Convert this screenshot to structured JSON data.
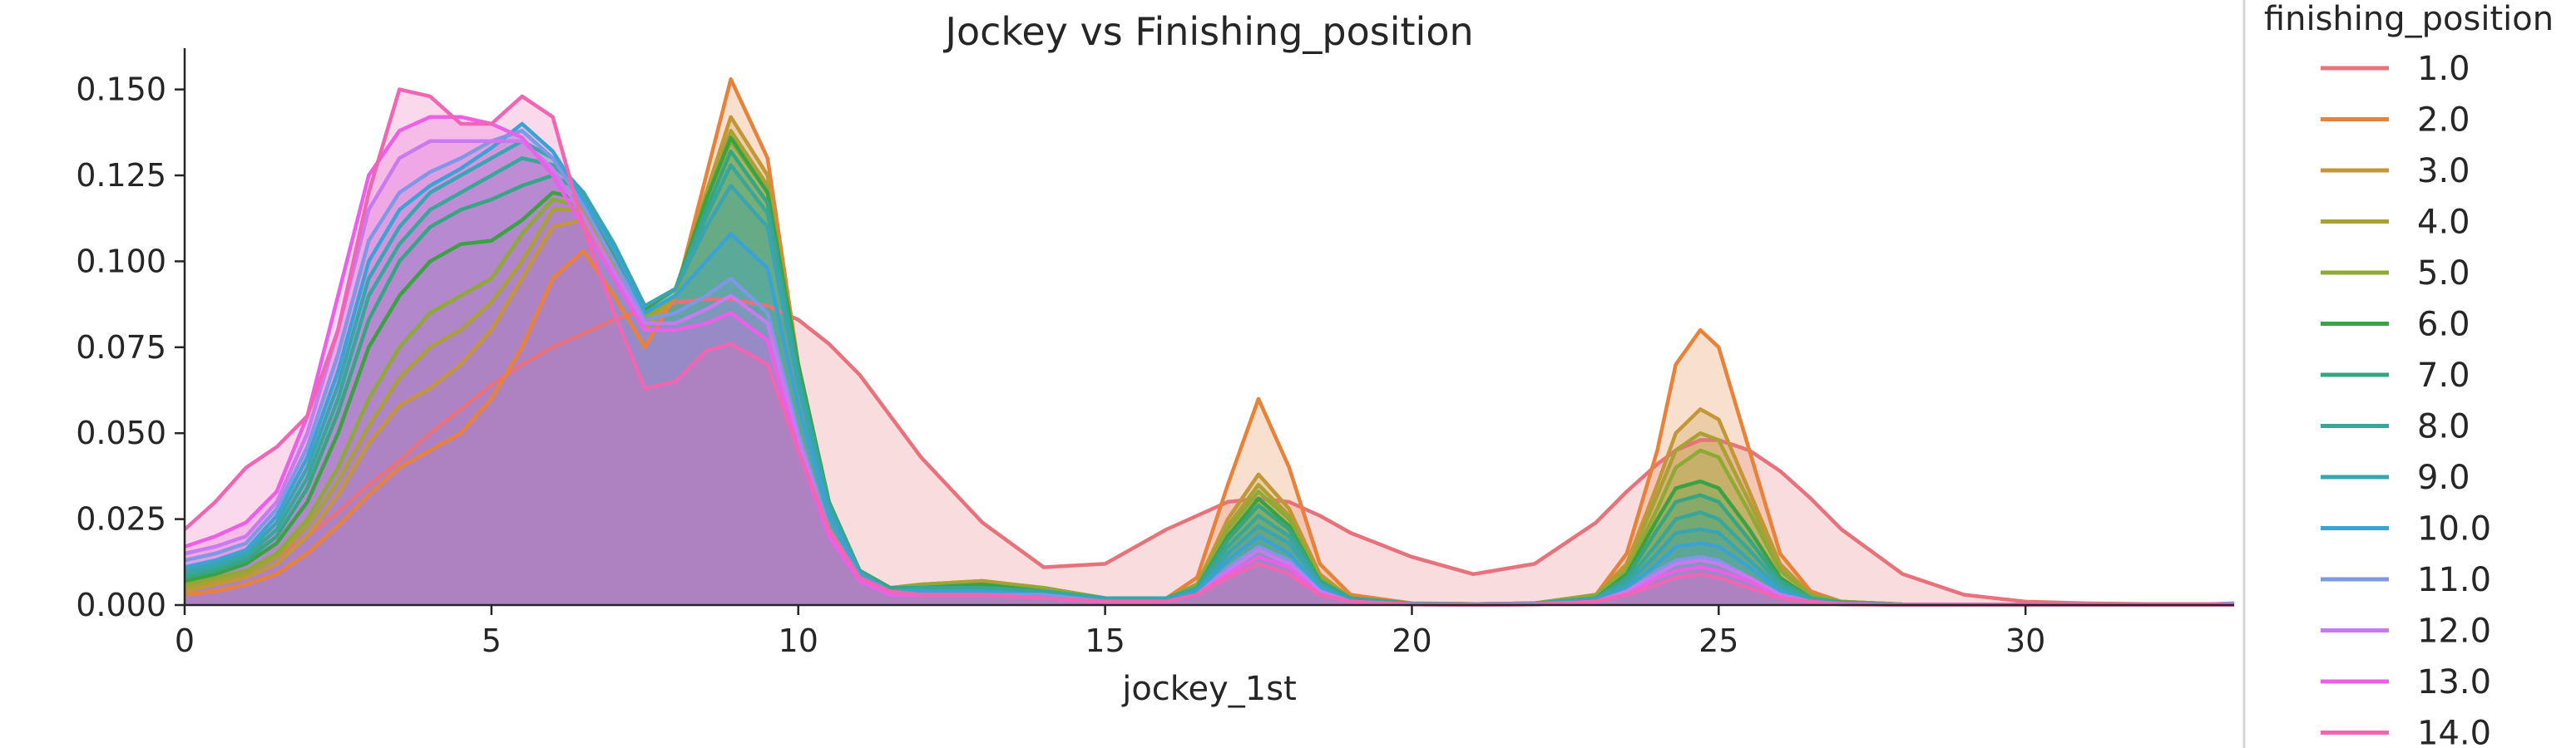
{
  "chart_data": {
    "type": "area",
    "subtype": "kde",
    "title": "Jockey vs Finishing_position",
    "xlabel": "jockey_1st",
    "ylabel": "",
    "xlim": [
      0,
      33.4
    ],
    "ylim": [
      0,
      0.162
    ],
    "x_ticks": [
      0,
      5,
      10,
      15,
      20,
      25,
      30
    ],
    "x_tick_labels": [
      "0",
      "5",
      "10",
      "15",
      "20",
      "25",
      "30"
    ],
    "y_ticks": [
      0,
      0.025,
      0.05,
      0.075,
      0.1,
      0.125,
      0.15
    ],
    "y_tick_labels": [
      "0.000",
      "0.025",
      "0.050",
      "0.075",
      "0.100",
      "0.125",
      "0.150"
    ],
    "grid": false,
    "legend": {
      "title": "finishing_position",
      "placement": "right-outside"
    },
    "x": [
      0,
      0.5,
      1,
      1.5,
      2,
      2.5,
      3,
      3.5,
      4,
      4.5,
      5,
      5.5,
      6,
      6.5,
      7,
      7.5,
      8,
      8.5,
      8.9,
      9.5,
      10,
      10.5,
      11,
      11.5,
      12,
      13,
      14,
      15,
      16,
      16.5,
      17,
      17.5,
      18,
      18.5,
      19,
      20,
      21,
      22,
      23,
      23.5,
      24,
      24.3,
      24.7,
      25,
      25.5,
      26,
      26.5,
      27,
      28,
      29,
      30,
      31,
      32,
      33,
      33.4
    ],
    "series": [
      {
        "name": "1.0",
        "color": "#e8727c",
        "values": [
          0.005,
          0.007,
          0.01,
          0.014,
          0.02,
          0.027,
          0.035,
          0.042,
          0.05,
          0.057,
          0.064,
          0.07,
          0.075,
          0.079,
          0.083,
          0.086,
          0.088,
          0.089,
          0.089,
          0.087,
          0.083,
          0.076,
          0.067,
          0.055,
          0.043,
          0.024,
          0.011,
          0.012,
          0.022,
          0.026,
          0.03,
          0.031,
          0.03,
          0.026,
          0.021,
          0.014,
          0.009,
          0.012,
          0.024,
          0.033,
          0.041,
          0.045,
          0.048,
          0.048,
          0.045,
          0.039,
          0.031,
          0.022,
          0.009,
          0.003,
          0.001,
          0.0005,
          0.0003,
          0.0003,
          0.0005
        ]
      },
      {
        "name": "2.0",
        "color": "#e8823a",
        "values": [
          0.003,
          0.004,
          0.006,
          0.009,
          0.015,
          0.023,
          0.032,
          0.04,
          0.045,
          0.05,
          0.06,
          0.075,
          0.095,
          0.103,
          0.09,
          0.075,
          0.09,
          0.125,
          0.153,
          0.13,
          0.07,
          0.03,
          0.01,
          0.005,
          0.006,
          0.007,
          0.005,
          0.002,
          0.002,
          0.008,
          0.035,
          0.06,
          0.04,
          0.012,
          0.003,
          0.0005,
          0.0003,
          0.0005,
          0.003,
          0.015,
          0.045,
          0.07,
          0.08,
          0.075,
          0.045,
          0.015,
          0.004,
          0.001,
          0.0002,
          0.0001,
          0.0001,
          0.0001,
          0.0001,
          0.0001,
          0.0001
        ]
      },
      {
        "name": "3.0",
        "color": "#c39737",
        "values": [
          0.004,
          0.006,
          0.008,
          0.012,
          0.02,
          0.032,
          0.047,
          0.058,
          0.063,
          0.07,
          0.08,
          0.095,
          0.11,
          0.112,
          0.095,
          0.08,
          0.09,
          0.12,
          0.142,
          0.125,
          0.07,
          0.03,
          0.01,
          0.005,
          0.006,
          0.007,
          0.005,
          0.002,
          0.002,
          0.006,
          0.025,
          0.038,
          0.028,
          0.009,
          0.002,
          0.0004,
          0.0003,
          0.0005,
          0.003,
          0.012,
          0.035,
          0.05,
          0.057,
          0.054,
          0.033,
          0.012,
          0.003,
          0.001,
          0.0002,
          0.0001,
          0.0001,
          0.0001,
          0.0001,
          0.0001,
          0.0001
        ]
      },
      {
        "name": "4.0",
        "color": "#aaa035",
        "values": [
          0.005,
          0.007,
          0.009,
          0.014,
          0.023,
          0.036,
          0.052,
          0.066,
          0.075,
          0.08,
          0.088,
          0.1,
          0.115,
          0.115,
          0.098,
          0.082,
          0.09,
          0.12,
          0.138,
          0.122,
          0.07,
          0.03,
          0.01,
          0.005,
          0.006,
          0.007,
          0.005,
          0.002,
          0.002,
          0.006,
          0.023,
          0.035,
          0.026,
          0.008,
          0.002,
          0.0004,
          0.0003,
          0.0005,
          0.003,
          0.011,
          0.032,
          0.045,
          0.05,
          0.048,
          0.03,
          0.011,
          0.003,
          0.001,
          0.0002,
          0.0001,
          0.0001,
          0.0001,
          0.0001,
          0.0001,
          0.0001
        ]
      },
      {
        "name": "5.0",
        "color": "#8ea935",
        "values": [
          0.006,
          0.008,
          0.01,
          0.015,
          0.025,
          0.04,
          0.06,
          0.075,
          0.085,
          0.09,
          0.095,
          0.108,
          0.118,
          0.116,
          0.1,
          0.084,
          0.09,
          0.118,
          0.135,
          0.12,
          0.07,
          0.03,
          0.01,
          0.005,
          0.006,
          0.006,
          0.005,
          0.002,
          0.002,
          0.006,
          0.022,
          0.033,
          0.025,
          0.008,
          0.002,
          0.0004,
          0.0003,
          0.0005,
          0.003,
          0.01,
          0.028,
          0.04,
          0.045,
          0.043,
          0.027,
          0.01,
          0.003,
          0.001,
          0.0002,
          0.0001,
          0.0001,
          0.0001,
          0.0001,
          0.0001,
          0.0001
        ]
      },
      {
        "name": "6.0",
        "color": "#3ba243",
        "values": [
          0.007,
          0.009,
          0.012,
          0.018,
          0.03,
          0.05,
          0.075,
          0.09,
          0.1,
          0.105,
          0.106,
          0.112,
          0.12,
          0.118,
          0.102,
          0.086,
          0.092,
          0.118,
          0.136,
          0.12,
          0.07,
          0.03,
          0.01,
          0.005,
          0.005,
          0.006,
          0.004,
          0.002,
          0.002,
          0.005,
          0.02,
          0.031,
          0.023,
          0.007,
          0.002,
          0.0004,
          0.0003,
          0.0005,
          0.002,
          0.009,
          0.025,
          0.034,
          0.036,
          0.034,
          0.022,
          0.008,
          0.002,
          0.0008,
          0.0002,
          0.0001,
          0.0001,
          0.0001,
          0.0001,
          0.0001,
          0.0001
        ]
      },
      {
        "name": "7.0",
        "color": "#36a584",
        "values": [
          0.008,
          0.01,
          0.013,
          0.02,
          0.034,
          0.056,
          0.083,
          0.1,
          0.11,
          0.115,
          0.118,
          0.122,
          0.125,
          0.12,
          0.104,
          0.087,
          0.092,
          0.115,
          0.132,
          0.117,
          0.068,
          0.03,
          0.01,
          0.005,
          0.005,
          0.005,
          0.004,
          0.002,
          0.002,
          0.005,
          0.019,
          0.029,
          0.022,
          0.007,
          0.002,
          0.0004,
          0.0003,
          0.0004,
          0.002,
          0.008,
          0.022,
          0.03,
          0.032,
          0.03,
          0.019,
          0.007,
          0.002,
          0.0007,
          0.0002,
          0.0001,
          0.0001,
          0.0001,
          0.0001,
          0.0001,
          0.0001
        ]
      },
      {
        "name": "8.0",
        "color": "#38a698",
        "values": [
          0.009,
          0.011,
          0.014,
          0.022,
          0.037,
          0.06,
          0.09,
          0.105,
          0.115,
          0.12,
          0.125,
          0.13,
          0.128,
          0.12,
          0.105,
          0.087,
          0.092,
          0.113,
          0.128,
          0.114,
          0.066,
          0.029,
          0.01,
          0.004,
          0.005,
          0.005,
          0.004,
          0.002,
          0.002,
          0.005,
          0.017,
          0.026,
          0.02,
          0.006,
          0.002,
          0.0003,
          0.0002,
          0.0004,
          0.002,
          0.007,
          0.018,
          0.025,
          0.027,
          0.025,
          0.016,
          0.006,
          0.002,
          0.0006,
          0.0002,
          0.0001,
          0.0001,
          0.0001,
          0.0001,
          0.0001,
          0.0001
        ]
      },
      {
        "name": "9.0",
        "color": "#3aa4b0",
        "values": [
          0.01,
          0.012,
          0.015,
          0.024,
          0.04,
          0.064,
          0.095,
          0.11,
          0.12,
          0.125,
          0.13,
          0.135,
          0.13,
          0.12,
          0.105,
          0.087,
          0.092,
          0.11,
          0.122,
          0.11,
          0.064,
          0.028,
          0.009,
          0.004,
          0.004,
          0.004,
          0.003,
          0.002,
          0.002,
          0.004,
          0.015,
          0.023,
          0.018,
          0.006,
          0.001,
          0.0003,
          0.0002,
          0.0003,
          0.002,
          0.006,
          0.015,
          0.021,
          0.022,
          0.021,
          0.013,
          0.005,
          0.001,
          0.0005,
          0.0002,
          0.0001,
          0.0001,
          0.0001,
          0.0001,
          0.0001,
          0.0001
        ]
      },
      {
        "name": "10.0",
        "color": "#3ba3d4",
        "values": [
          0.011,
          0.013,
          0.016,
          0.026,
          0.043,
          0.068,
          0.1,
          0.115,
          0.122,
          0.127,
          0.133,
          0.14,
          0.132,
          0.118,
          0.103,
          0.085,
          0.09,
          0.1,
          0.108,
          0.098,
          0.058,
          0.026,
          0.009,
          0.004,
          0.004,
          0.004,
          0.003,
          0.001,
          0.001,
          0.004,
          0.013,
          0.02,
          0.015,
          0.005,
          0.001,
          0.0003,
          0.0002,
          0.0003,
          0.001,
          0.005,
          0.012,
          0.017,
          0.018,
          0.017,
          0.011,
          0.004,
          0.001,
          0.0004,
          0.0001,
          0.0001,
          0.0001,
          0.0001,
          0.0001,
          0.0001,
          0.0001
        ]
      },
      {
        "name": "11.0",
        "color": "#8097e4",
        "values": [
          0.013,
          0.015,
          0.018,
          0.028,
          0.046,
          0.073,
          0.106,
          0.12,
          0.126,
          0.13,
          0.135,
          0.138,
          0.13,
          0.116,
          0.1,
          0.083,
          0.085,
          0.09,
          0.095,
          0.085,
          0.05,
          0.022,
          0.008,
          0.003,
          0.003,
          0.003,
          0.003,
          0.001,
          0.001,
          0.003,
          0.011,
          0.017,
          0.013,
          0.004,
          0.001,
          0.0002,
          0.0002,
          0.0003,
          0.001,
          0.004,
          0.01,
          0.013,
          0.014,
          0.013,
          0.008,
          0.003,
          0.001,
          0.0003,
          0.0001,
          0.0001,
          0.0001,
          0.0001,
          0.0001,
          0.0001,
          0.0005
        ]
      },
      {
        "name": "12.0",
        "color": "#c87bef",
        "values": [
          0.015,
          0.017,
          0.02,
          0.03,
          0.05,
          0.08,
          0.115,
          0.13,
          0.135,
          0.135,
          0.135,
          0.135,
          0.127,
          0.113,
          0.097,
          0.082,
          0.082,
          0.086,
          0.09,
          0.082,
          0.048,
          0.021,
          0.007,
          0.003,
          0.003,
          0.003,
          0.002,
          0.001,
          0.001,
          0.003,
          0.01,
          0.016,
          0.012,
          0.004,
          0.001,
          0.0002,
          0.0001,
          0.0002,
          0.001,
          0.004,
          0.009,
          0.012,
          0.013,
          0.012,
          0.008,
          0.003,
          0.001,
          0.0003,
          0.0001,
          0.0001,
          0.0001,
          0.0001,
          0.0001,
          0.0001,
          0.0001
        ]
      },
      {
        "name": "13.0",
        "color": "#ec5fe6",
        "values": [
          0.017,
          0.02,
          0.024,
          0.033,
          0.055,
          0.09,
          0.125,
          0.138,
          0.142,
          0.142,
          0.14,
          0.136,
          0.125,
          0.11,
          0.095,
          0.08,
          0.08,
          0.082,
          0.085,
          0.077,
          0.045,
          0.02,
          0.007,
          0.003,
          0.003,
          0.003,
          0.002,
          0.001,
          0.001,
          0.003,
          0.009,
          0.014,
          0.011,
          0.003,
          0.001,
          0.0002,
          0.0001,
          0.0002,
          0.001,
          0.003,
          0.008,
          0.01,
          0.011,
          0.01,
          0.007,
          0.002,
          0.001,
          0.0003,
          0.0001,
          0.0001,
          0.0001,
          0.0001,
          0.0001,
          0.0001,
          0.0001
        ]
      },
      {
        "name": "14.0",
        "color": "#f066b3",
        "values": [
          0.022,
          0.03,
          0.04,
          0.046,
          0.055,
          0.08,
          0.12,
          0.15,
          0.148,
          0.14,
          0.14,
          0.148,
          0.142,
          0.11,
          0.085,
          0.063,
          0.065,
          0.074,
          0.076,
          0.07,
          0.045,
          0.022,
          0.008,
          0.004,
          0.003,
          0.003,
          0.002,
          0.001,
          0.001,
          0.003,
          0.008,
          0.012,
          0.009,
          0.003,
          0.001,
          0.0002,
          0.0001,
          0.0002,
          0.001,
          0.003,
          0.006,
          0.008,
          0.009,
          0.008,
          0.005,
          0.002,
          0.001,
          0.0002,
          0.0001,
          0.0001,
          0.0001,
          0.0001,
          0.0001,
          0.0001,
          0.0001
        ]
      }
    ]
  }
}
